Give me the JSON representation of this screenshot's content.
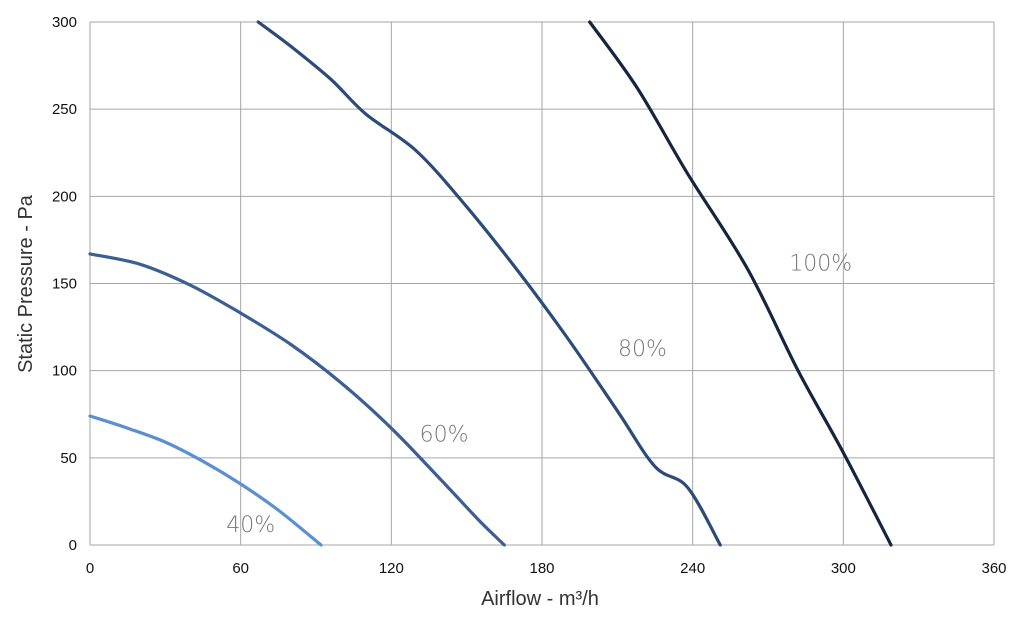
{
  "chart_data": {
    "type": "line",
    "title": "",
    "xlabel": "Airflow - m³/h",
    "ylabel": "Static Pressure - Pa",
    "xlim": [
      0,
      360
    ],
    "ylim": [
      0,
      300
    ],
    "xticks": [
      0,
      60,
      120,
      180,
      240,
      300,
      360
    ],
    "yticks": [
      0,
      50,
      100,
      150,
      200,
      250,
      300
    ],
    "grid": true,
    "legend": "none",
    "series": [
      {
        "name": "40%",
        "color": "#5b8fd2",
        "x": [
          0,
          15,
          30,
          45,
          60,
          75,
          92
        ],
        "y": [
          74,
          67,
          59,
          48,
          35,
          20,
          0
        ]
      },
      {
        "name": "60%",
        "color": "#3b5f93",
        "x": [
          0,
          20,
          40,
          60,
          80,
          100,
          120,
          140,
          155,
          165
        ],
        "y": [
          167,
          161,
          149,
          133,
          115,
          93,
          67,
          37,
          14,
          0
        ]
      },
      {
        "name": "80%",
        "color": "#2b4b78",
        "x": [
          67,
          80,
          96,
          110,
          130,
          150,
          170,
          190,
          210,
          225,
          238,
          251
        ],
        "y": [
          300,
          286,
          267,
          247,
          226,
          194,
          158,
          119,
          77,
          45,
          33,
          0
        ]
      },
      {
        "name": "100%",
        "color": "#14253f",
        "x": [
          199,
          218,
          238,
          262,
          282,
          300,
          319
        ],
        "y": [
          300,
          262,
          213,
          158,
          100,
          53,
          0
        ]
      }
    ]
  }
}
